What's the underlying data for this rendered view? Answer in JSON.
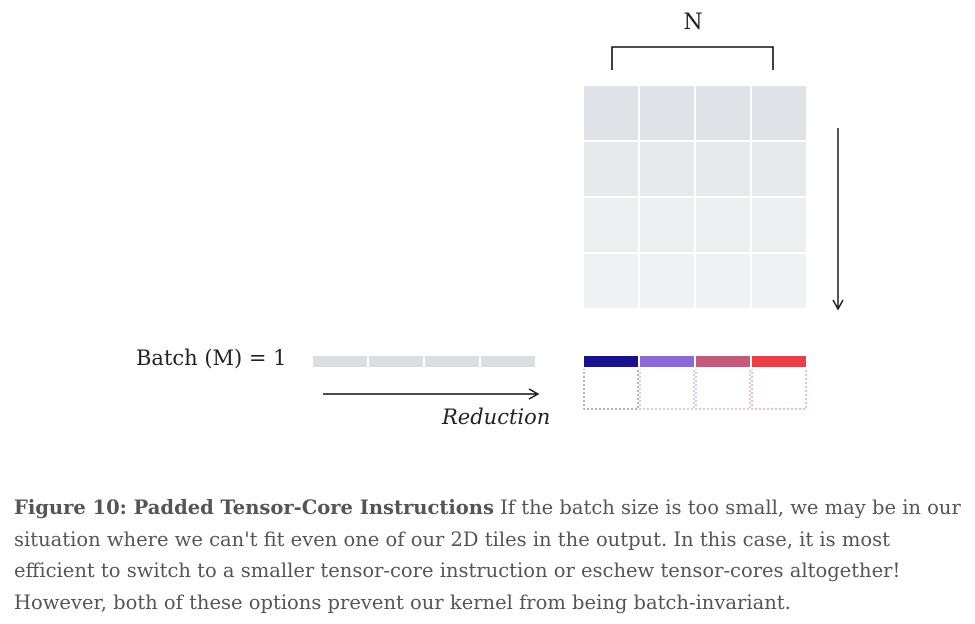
{
  "diagram": {
    "n_label": "N",
    "batch_label": "Batch (M) = 1",
    "reduction_label": "Reduction",
    "output_colors": [
      "#1a128c",
      "#8a6ad6",
      "#c45a7a",
      "#e8404a"
    ],
    "matrix_colors": [
      "#dfe2e6",
      "#e7e9ec",
      "#eceef0",
      "#f0f1f3"
    ],
    "batch_row_color": "#dcdee2"
  },
  "caption": {
    "title": "Figure 10: Padded Tensor-Core Instructions",
    "text": "If the batch size is too small, we may be in our situation where we can't fit even one of our 2D tiles in the output. In this case, it is most efficient to switch to a smaller tensor-core instruction or eschew tensor-cores altogether! However, both of these options prevent our kernel from being batch-invariant."
  }
}
